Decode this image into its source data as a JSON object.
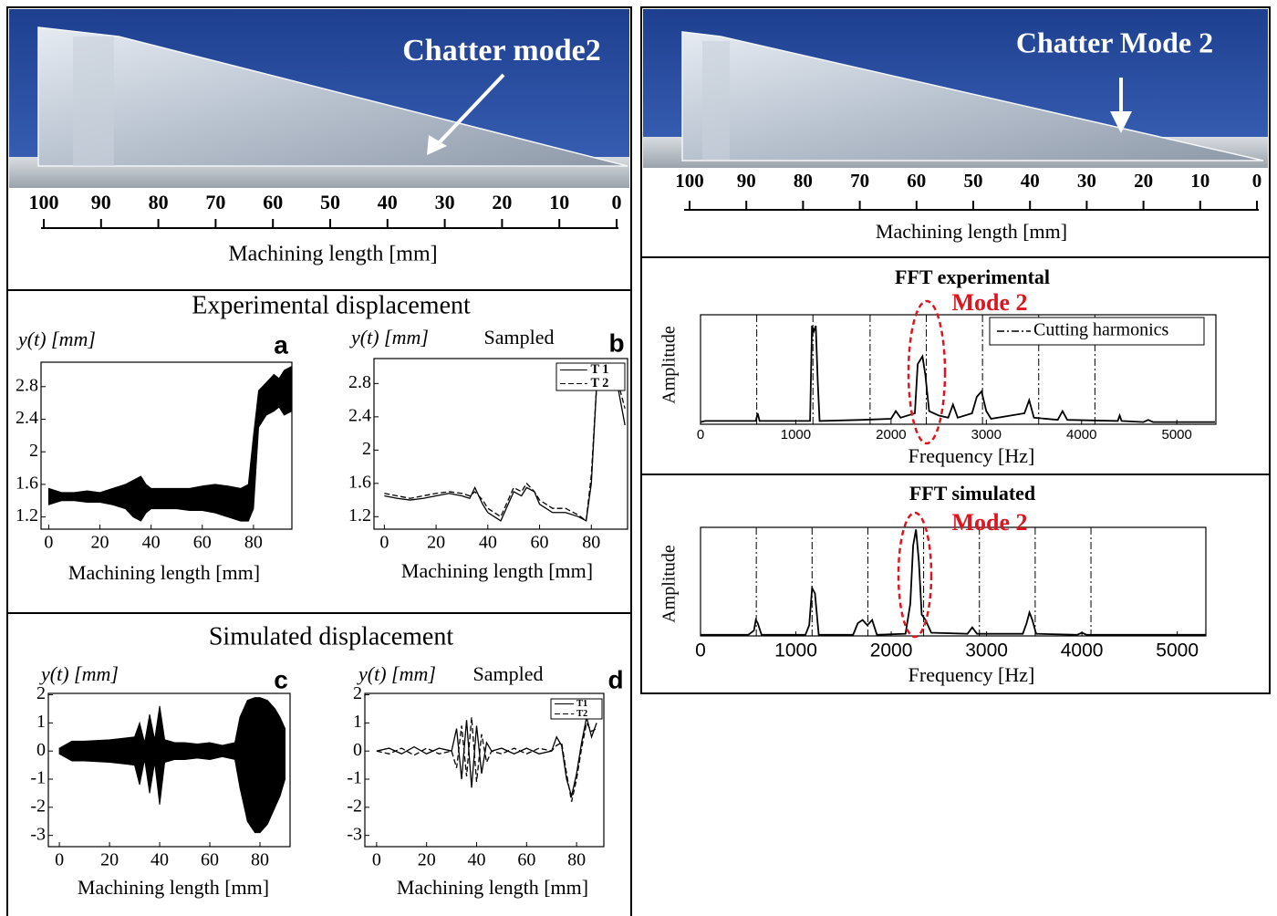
{
  "photos": [
    {
      "annotation": "Chatter mode2",
      "ruler": [
        100,
        90,
        80,
        70,
        60,
        50,
        40,
        30,
        20,
        10,
        0
      ],
      "xlabel": "Machining length [mm]"
    },
    {
      "annotation": "Chatter Mode 2",
      "ruler": [
        100,
        90,
        80,
        70,
        60,
        50,
        40,
        30,
        20,
        10,
        0
      ],
      "xlabel": "Machining length [mm]"
    }
  ],
  "sections": [
    "Experimental displacement",
    "Simulated displacement"
  ],
  "chart_data": [
    {
      "type": "band",
      "panel": "a",
      "ylabel": "y(t) [mm]",
      "xlabel": "Machining length [mm]",
      "x": [
        0,
        5,
        10,
        15,
        20,
        25,
        30,
        33,
        36,
        38,
        40,
        45,
        50,
        55,
        60,
        65,
        70,
        75,
        78,
        80,
        82,
        85,
        88,
        90,
        92,
        95
      ],
      "series": [
        {
          "color": "#000000",
          "values": [
            1.55,
            1.5,
            1.5,
            1.52,
            1.5,
            1.55,
            1.6,
            1.65,
            1.7,
            1.6,
            1.55,
            1.55,
            1.55,
            1.55,
            1.58,
            1.6,
            1.58,
            1.55,
            1.6,
            2.2,
            2.75,
            2.85,
            2.95,
            2.9,
            3.0,
            3.05
          ]
        },
        {
          "color": "#000000",
          "values": [
            1.35,
            1.4,
            1.4,
            1.38,
            1.38,
            1.35,
            1.3,
            1.2,
            1.15,
            1.25,
            1.3,
            1.3,
            1.3,
            1.28,
            1.28,
            1.25,
            1.2,
            1.15,
            1.15,
            1.3,
            2.3,
            2.45,
            2.5,
            2.55,
            2.45,
            2.5
          ]
        }
      ],
      "xlim": [
        -3,
        95
      ],
      "ylim": [
        1.05,
        3.1
      ],
      "xticks": [
        0,
        20,
        40,
        60,
        80
      ],
      "yticks": [
        1.2,
        1.6,
        2,
        2.4,
        2.8
      ]
    },
    {
      "type": "line",
      "panel": "b",
      "ylabel": "y(t) [mm]",
      "note": "Sampled",
      "xlabel": "Machining length [mm]",
      "x": [
        0,
        5,
        10,
        15,
        20,
        25,
        30,
        33,
        35,
        38,
        40,
        45,
        50,
        53,
        55,
        58,
        60,
        65,
        70,
        75,
        78,
        80,
        82,
        85,
        90,
        93
      ],
      "series": [
        {
          "name": "T 1",
          "color": "#000000",
          "style": "solid",
          "values": [
            1.45,
            1.42,
            1.4,
            1.42,
            1.45,
            1.48,
            1.45,
            1.42,
            1.55,
            1.35,
            1.25,
            1.15,
            1.5,
            1.45,
            1.55,
            1.5,
            1.35,
            1.25,
            1.25,
            1.2,
            1.15,
            1.6,
            2.75,
            2.8,
            2.8,
            2.3
          ]
        },
        {
          "name": "T 2",
          "color": "#000000",
          "style": "dashed",
          "values": [
            1.48,
            1.45,
            1.42,
            1.45,
            1.48,
            1.5,
            1.48,
            1.45,
            1.5,
            1.4,
            1.3,
            1.2,
            1.55,
            1.5,
            1.6,
            1.5,
            1.4,
            1.3,
            1.3,
            1.22,
            1.15,
            1.7,
            2.75,
            2.9,
            2.85,
            2.5
          ]
        }
      ],
      "xlim": [
        -4,
        94
      ],
      "ylim": [
        1.05,
        3.1
      ],
      "xticks": [
        0,
        20,
        40,
        60,
        80
      ],
      "yticks": [
        1.2,
        1.6,
        2,
        2.4,
        2.8
      ]
    },
    {
      "type": "band",
      "panel": "c",
      "ylabel": "y(t) [mm]",
      "xlabel": "Machining length [mm]",
      "x": [
        0,
        5,
        10,
        20,
        25,
        30,
        32,
        34,
        36,
        38,
        40,
        42,
        44,
        46,
        48,
        50,
        55,
        60,
        65,
        70,
        72,
        75,
        78,
        80,
        83,
        86,
        88,
        90
      ],
      "series": [
        {
          "color": "#000000",
          "values": [
            0.1,
            0.35,
            0.35,
            0.4,
            0.45,
            0.5,
            1.0,
            0.3,
            1.3,
            0.4,
            1.6,
            0.4,
            0.35,
            0.3,
            0.3,
            0.3,
            0.25,
            0.3,
            0.2,
            0.3,
            1.2,
            1.8,
            1.9,
            1.9,
            1.8,
            1.5,
            1.2,
            0.8
          ]
        },
        {
          "color": "#000000",
          "values": [
            -0.1,
            -0.35,
            -0.35,
            -0.4,
            -0.45,
            -0.5,
            -1.2,
            -0.3,
            -1.5,
            -0.4,
            -1.9,
            -0.4,
            -0.35,
            -0.3,
            -0.3,
            -0.3,
            -0.25,
            -0.3,
            -0.2,
            -0.3,
            -1.3,
            -2.5,
            -2.9,
            -2.9,
            -2.6,
            -2.0,
            -1.6,
            -1.0
          ]
        }
      ],
      "xlim": [
        -4.4,
        92
      ],
      "ylim": [
        -3.4,
        2.05
      ],
      "xticks": [
        0,
        20,
        40,
        60,
        80
      ],
      "yticks": [
        -3,
        -2,
        -1,
        0,
        1,
        2
      ]
    },
    {
      "type": "line",
      "panel": "d",
      "ylabel": "y(t) [mm]",
      "note": "Sampled",
      "xlabel": "Machining length [mm]",
      "x": [
        0,
        5,
        10,
        15,
        20,
        25,
        30,
        32,
        34,
        36,
        38,
        40,
        42,
        44,
        46,
        50,
        55,
        60,
        65,
        70,
        72,
        74,
        76,
        78,
        80,
        82,
        84,
        86,
        88
      ],
      "series": [
        {
          "name": "T1",
          "color": "#000000",
          "style": "solid",
          "values": [
            0,
            0.1,
            -0.1,
            0.15,
            -0.1,
            0.1,
            0,
            0.8,
            -1.0,
            1.1,
            -1.3,
            0.9,
            -0.8,
            0.3,
            0,
            0.1,
            -0.1,
            0.1,
            -0.1,
            0,
            0.5,
            0.2,
            -1.0,
            -1.6,
            -0.8,
            0.3,
            1.2,
            0.5,
            1.0
          ]
        },
        {
          "name": "T2",
          "color": "#000000",
          "style": "dashed",
          "values": [
            0,
            -0.1,
            0.1,
            -0.15,
            0.1,
            -0.1,
            0,
            -0.6,
            0.9,
            -0.9,
            1.2,
            -1.1,
            0.6,
            -0.4,
            0,
            -0.1,
            0.1,
            -0.1,
            0.1,
            0,
            0.2,
            0.3,
            -0.8,
            -1.8,
            -1.0,
            0.1,
            1.0,
            0.7,
            0.8
          ]
        }
      ],
      "xlim": [
        -4.7,
        90.9
      ],
      "ylim": [
        -3.4,
        2.05
      ],
      "xticks": [
        0,
        20,
        40,
        60,
        80
      ],
      "yticks": [
        -3,
        -2,
        -1,
        0,
        1,
        2
      ]
    },
    {
      "type": "line",
      "title": "FFT experimental",
      "annotation": "Mode 2",
      "ylabel": "Amplitude",
      "xlabel": "Frequency [Hz]",
      "x": [
        0,
        50,
        580,
        600,
        620,
        1150,
        1170,
        1190,
        1210,
        1230,
        1250,
        1700,
        2000,
        2050,
        2100,
        2250,
        2280,
        2330,
        2360,
        2400,
        2500,
        2600,
        2650,
        2700,
        2850,
        2900,
        2950,
        3000,
        3050,
        3400,
        3450,
        3500,
        3750,
        3800,
        3850,
        4380,
        4400,
        4420,
        4650,
        4700,
        4750,
        5400
      ],
      "series": [
        {
          "color": "#000000",
          "style": "solid",
          "values": [
            0.02,
            0.03,
            0.03,
            0.1,
            0.03,
            0.03,
            0.9,
            0.85,
            0.9,
            0.4,
            0.03,
            0.04,
            0.05,
            0.12,
            0.06,
            0.1,
            0.55,
            0.62,
            0.45,
            0.12,
            0.08,
            0.06,
            0.18,
            0.06,
            0.1,
            0.25,
            0.3,
            0.12,
            0.05,
            0.1,
            0.22,
            0.06,
            0.04,
            0.12,
            0.04,
            0.03,
            0.08,
            0.03,
            0.02,
            0.04,
            0.02,
            0.02
          ]
        }
      ],
      "harmonics": {
        "name": "Cutting harmonics",
        "x": [
          590,
          1180,
          1780,
          2370,
          2960,
          3550,
          4140
        ]
      },
      "xlim": [
        0,
        5410
      ],
      "ylim": [
        0,
        1
      ],
      "xticks": [
        0,
        1000,
        2000,
        3000,
        4000,
        5000
      ]
    },
    {
      "type": "line",
      "title": "FFT simulated",
      "annotation": "Mode 2",
      "ylabel": "Amplitude",
      "xlabel": "Frequency [Hz]",
      "x": [
        0,
        500,
        560,
        580,
        600,
        640,
        1100,
        1140,
        1170,
        1200,
        1240,
        1600,
        1650,
        1700,
        1750,
        1800,
        1850,
        2150,
        2200,
        2230,
        2260,
        2290,
        2320,
        2360,
        2420,
        2800,
        2850,
        2900,
        3380,
        3420,
        3450,
        3480,
        3520,
        3950,
        4000,
        4050,
        5300
      ],
      "series": [
        {
          "color": "#000000",
          "style": "solid",
          "values": [
            0.01,
            0.01,
            0.05,
            0.15,
            0.12,
            0.01,
            0.01,
            0.1,
            0.45,
            0.4,
            0.01,
            0.01,
            0.12,
            0.15,
            0.1,
            0.15,
            0.01,
            0.02,
            0.3,
            0.85,
            1.0,
            0.7,
            0.2,
            0.15,
            0.03,
            0.02,
            0.08,
            0.02,
            0.02,
            0.12,
            0.22,
            0.15,
            0.02,
            0.01,
            0.03,
            0.01,
            0.01
          ]
        }
      ],
      "harmonics": {
        "x": [
          585,
          1170,
          1755,
          2340,
          2925,
          3510,
          4095
        ]
      },
      "xlim": [
        0,
        5300
      ],
      "ylim": [
        0,
        1.02
      ],
      "xticks": [
        0,
        1000,
        2000,
        3000,
        4000,
        5000
      ]
    }
  ]
}
